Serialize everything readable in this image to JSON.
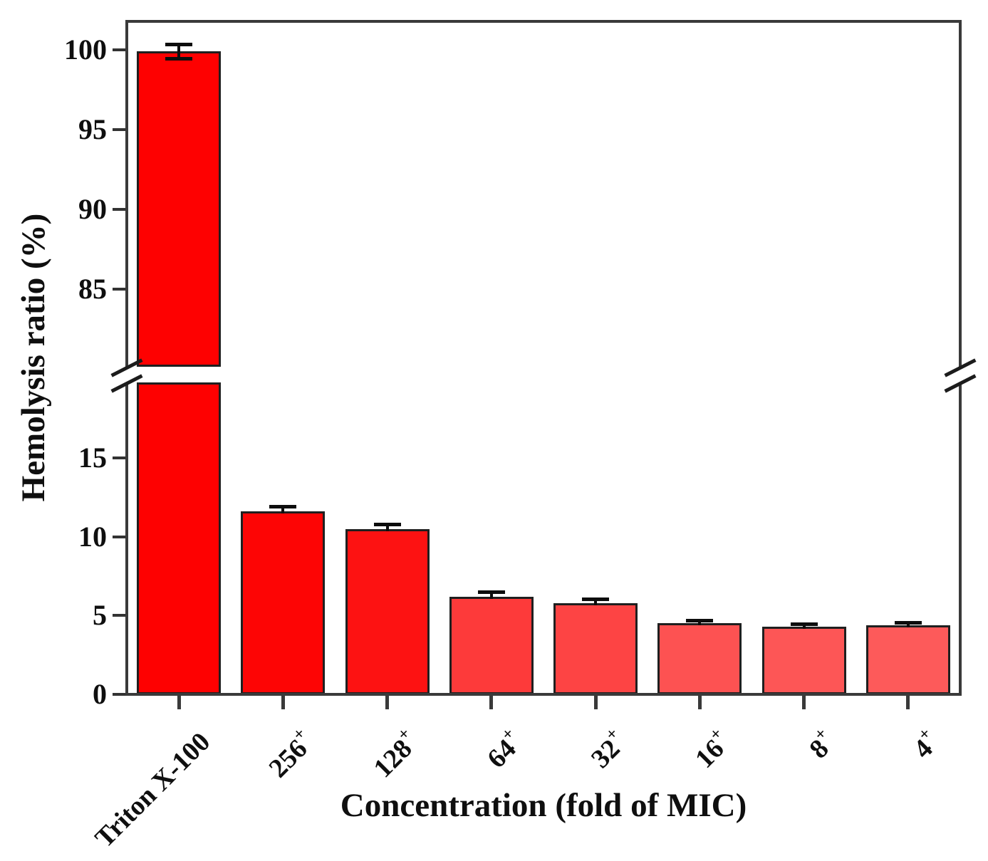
{
  "chart_data": {
    "type": "bar",
    "title": "",
    "xlabel": "Concentration (fold of MIC)",
    "ylabel": "Hemolysis ratio (%)",
    "categories_text": [
      "Triton X-100",
      "256+",
      "128+",
      "64+",
      "32+",
      "16+",
      "8+",
      "4+"
    ],
    "categories": [
      {
        "base": "Triton X-100",
        "sup": ""
      },
      {
        "base": "256",
        "sup": "+"
      },
      {
        "base": "128",
        "sup": "+"
      },
      {
        "base": "64",
        "sup": "+"
      },
      {
        "base": "32",
        "sup": "+"
      },
      {
        "base": "16",
        "sup": "+"
      },
      {
        "base": "8",
        "sup": "+"
      },
      {
        "base": "4",
        "sup": "+"
      }
    ],
    "values": [
      99.9,
      11.6,
      10.5,
      6.2,
      5.8,
      4.5,
      4.3,
      4.4
    ],
    "errors": [
      0.45,
      0.3,
      0.27,
      0.27,
      0.23,
      0.18,
      0.15,
      0.15
    ],
    "error_bars": true,
    "bar_colors": [
      "#fe0101",
      "#fd0505",
      "#fd1212",
      "#fd3a3a",
      "#fd4444",
      "#fd5252",
      "#fd5656",
      "#fd5a5a"
    ],
    "bar_edge_color": "#1f1f1f",
    "background_color": "#ffffff",
    "grid": false,
    "legend": null,
    "axis_break": {
      "break_marker": "double-slash",
      "upper_segment": {
        "ticks": [
          100,
          95,
          90,
          85
        ],
        "range": [
          80,
          101.5
        ]
      },
      "lower_segment": {
        "ticks": [
          15,
          10,
          5,
          0
        ],
        "range": [
          0,
          19.8
        ]
      }
    }
  }
}
